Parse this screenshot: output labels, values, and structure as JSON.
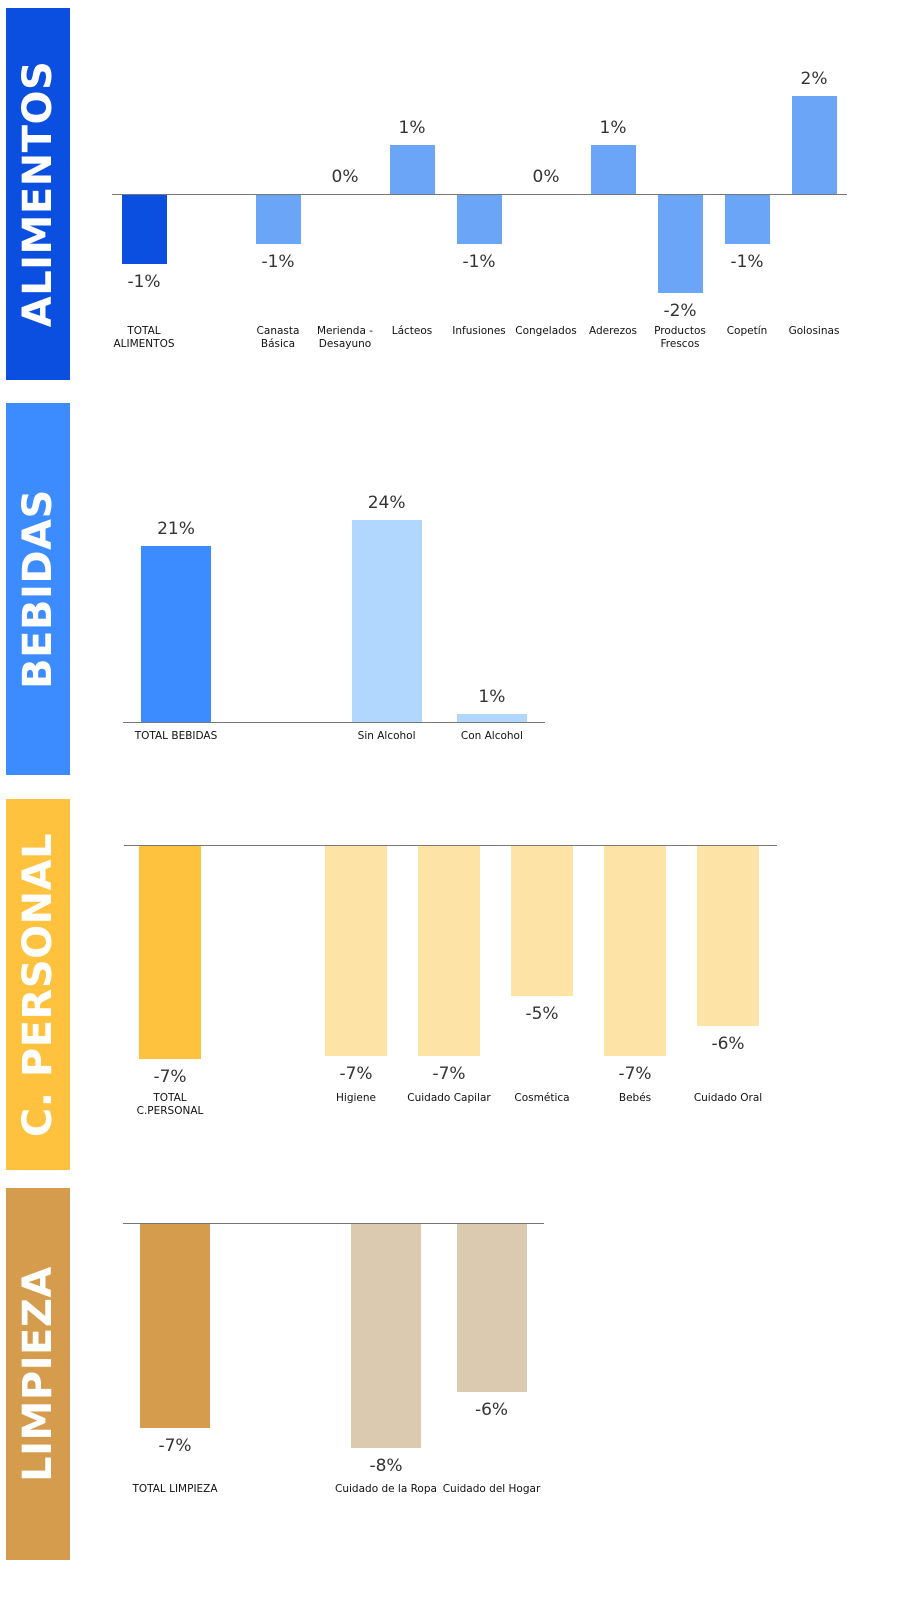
{
  "chart_data": [
    {
      "type": "bar",
      "title": "ALIMENTOS",
      "categories": [
        "TOTAL ALIMENTOS",
        null,
        "Canasta Básica",
        "Merienda - Desayuno",
        "Lácteos",
        "Infusiones",
        "Congelados",
        "Aderezos",
        "Productos Frescos",
        "Copetín",
        "Golosinas"
      ],
      "values": [
        -1.4,
        null,
        -1,
        0,
        1,
        -1,
        0,
        1,
        -2,
        -1,
        2
      ],
      "value_labels": [
        "-1%",
        null,
        "-1%",
        "0%",
        "1%",
        "-1%",
        "0%",
        "1%",
        "-2%",
        "-1%",
        "2%"
      ],
      "colors": [
        "#0a4fe0",
        null,
        "#6aa5f8",
        "#6aa5f8",
        "#6aa5f8",
        "#6aa5f8",
        "#6aa5f8",
        "#6aa5f8",
        "#6aa5f8",
        "#6aa5f8",
        "#6aa5f8"
      ],
      "band_color": "#0a4fe0"
    },
    {
      "type": "bar",
      "title": "BEBIDAS",
      "categories": [
        "TOTAL BEBIDAS",
        null,
        "Sin Alcohol",
        "Con Alcohol"
      ],
      "values": [
        21,
        null,
        24,
        1
      ],
      "value_labels": [
        "21%",
        null,
        "24%",
        "1%"
      ],
      "colors": [
        "#3d8cff",
        null,
        "#b2d7ff",
        "#b2d7ff"
      ],
      "band_color": "#3d8cff"
    },
    {
      "type": "bar",
      "title": "C. PERSONAL",
      "categories": [
        "TOTAL C.PERSONAL",
        null,
        "Higiene",
        "Cuidado Capilar",
        "Cosmética",
        "Bebés",
        "Cuidado Oral"
      ],
      "values": [
        -7.1,
        null,
        -7,
        -7,
        -5,
        -7,
        -6
      ],
      "value_labels": [
        "-7%",
        null,
        "-7%",
        "-7%",
        "-5%",
        "-7%",
        "-6%"
      ],
      "colors": [
        "#ffc23e",
        null,
        "#fee3a7",
        "#fee3a7",
        "#fee3a7",
        "#fee3a7",
        "#fee3a7"
      ],
      "band_color": "#ffc23e"
    },
    {
      "type": "bar",
      "title": "LIMPIEZA",
      "categories": [
        "TOTAL LIMPIEZA",
        null,
        "Cuidado de la Ropa",
        "Cuidado del Hogar"
      ],
      "values": [
        -7.3,
        null,
        -8,
        -6
      ],
      "value_labels": [
        "-7%",
        null,
        "-8%",
        "-6%"
      ],
      "colors": [
        "#d69c4d",
        null,
        "#dccab0",
        "#dccab0"
      ],
      "band_color": "#d69c4d"
    }
  ]
}
